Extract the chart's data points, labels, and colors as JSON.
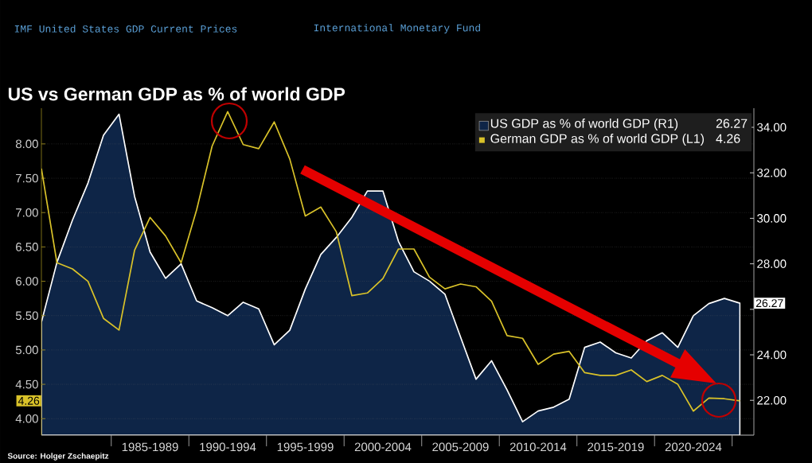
{
  "chart_data": {
    "type": "line",
    "title": "US vs German GDP as % of world GDP",
    "subtitle": "IMF United States GDP Current Prices",
    "categories": [
      null,
      null,
      null,
      null,
      null,
      null,
      null,
      "1985-1989",
      null,
      null,
      null,
      null,
      "1990-1994",
      null,
      null,
      null,
      null,
      "1995-1999",
      null,
      null,
      null,
      null,
      "2000-2004",
      null,
      null,
      null,
      null,
      "2005-2009",
      null,
      null,
      null,
      null,
      "2010-2014",
      null,
      null,
      null,
      null,
      "2015-2019",
      null,
      null,
      null,
      null,
      "2020-2024",
      null,
      null,
      null
    ],
    "series": [
      {
        "name": "US GDP as % of world GDP (R1)",
        "type": "area",
        "axis": "y2",
        "color": "#0e2547",
        "values": [
          25.43,
          28.06,
          29.92,
          31.55,
          33.65,
          34.58,
          30.97,
          28.52,
          27.36,
          28.0,
          26.37,
          26.07,
          25.72,
          26.31,
          26.02,
          24.44,
          25.08,
          26.89,
          28.41,
          29.16,
          30.04,
          31.2,
          31.2,
          28.99,
          27.65,
          27.24,
          26.66,
          24.79,
          22.93,
          23.74,
          22.46,
          21.06,
          21.53,
          21.7,
          22.05,
          24.33,
          24.56,
          24.09,
          23.86,
          24.62,
          24.97,
          24.33,
          25.72,
          26.25,
          26.48,
          26.27
        ]
      },
      {
        "name": "German GDP as % of world GDP (L1)",
        "color": "#d9c229",
        "values": [
          7.64,
          6.27,
          6.18,
          6.0,
          5.46,
          5.29,
          6.45,
          6.93,
          6.66,
          6.27,
          7.04,
          7.97,
          8.47,
          7.99,
          7.93,
          8.32,
          7.78,
          6.95,
          7.08,
          6.72,
          5.79,
          5.83,
          6.04,
          6.47,
          6.47,
          6.06,
          5.89,
          5.96,
          5.92,
          5.71,
          5.21,
          5.17,
          4.79,
          4.94,
          4.98,
          4.67,
          4.63,
          4.63,
          4.71,
          4.54,
          4.63,
          4.5,
          4.11,
          4.3,
          4.29,
          4.26
        ]
      }
    ],
    "ylim": [
      3.76,
      8.52
    ],
    "yticks": [
      {
        "value": 4,
        "label": "4.00"
      },
      {
        "value": 4.5,
        "label": "4.50"
      },
      {
        "value": 5,
        "label": "5.00"
      },
      {
        "value": 5.5,
        "label": "5.50"
      },
      {
        "value": 6,
        "label": "6.00"
      },
      {
        "value": 6.5,
        "label": "6.50"
      },
      {
        "value": 7,
        "label": "7.00"
      },
      {
        "value": 7.5,
        "label": "7.50"
      },
      {
        "value": 8,
        "label": "8.00"
      }
    ],
    "y2lim": [
      20.47,
      34.84
    ],
    "y2ticks": [
      {
        "value": 22,
        "label": "22.00"
      },
      {
        "value": 24,
        "label": "24.00"
      },
      {
        "value": 26,
        "label": null
      },
      {
        "value": 28,
        "label": "28.00"
      },
      {
        "value": 30,
        "label": "30.00"
      },
      {
        "value": 32,
        "label": "32.00"
      },
      {
        "value": 34,
        "label": "34.00"
      }
    ],
    "grid": "y",
    "legend": "top right",
    "annotations": [
      "26.27",
      "4.26",
      "International Monetary Fund",
      "Source: Holger Zschaepitz"
    ]
  }
}
